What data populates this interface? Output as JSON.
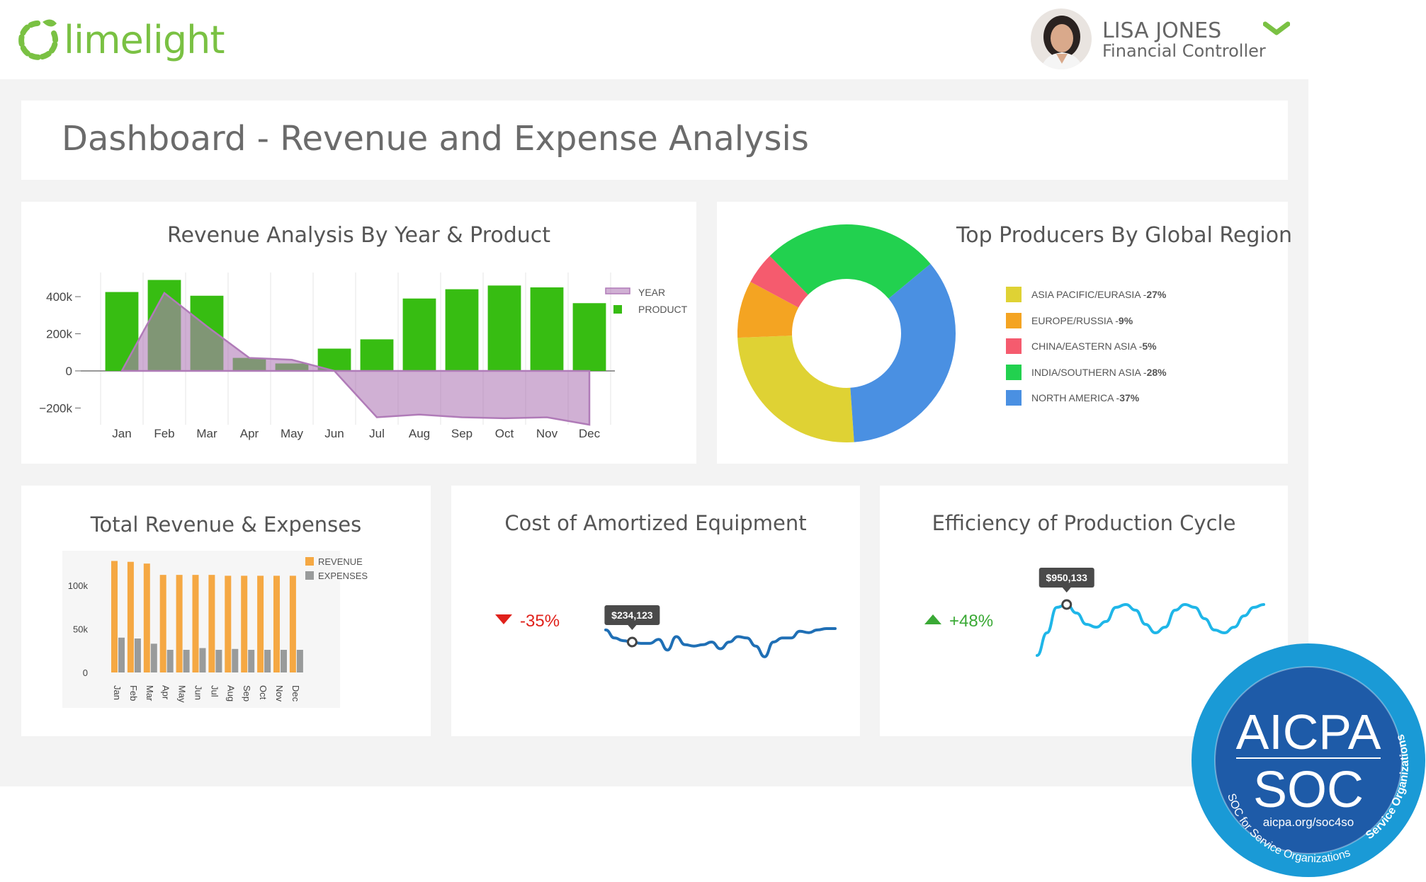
{
  "brand": {
    "name": "limelight",
    "color": "#7ac143"
  },
  "user": {
    "name": "LISA JONES",
    "role": "Financial Controller"
  },
  "page_title": "Dashboard - Revenue and Expense Analysis",
  "panels": {
    "revenue": {
      "title": "Revenue Analysis By Year & Product"
    },
    "producers": {
      "title": "Top Producers By Global Region"
    },
    "totals": {
      "title": "Total Revenue & Expenses"
    },
    "amortized": {
      "title": "Cost of Amortized Equipment",
      "change": "-35%",
      "tooltip": "$234,123",
      "trend": "down",
      "color": "#1f6fb5",
      "change_color": "#e0211b"
    },
    "efficiency": {
      "title": "Efficiency of Production Cycle",
      "change": "+48%",
      "tooltip": "$950,133",
      "trend": "up",
      "color": "#1fb6e8",
      "change_color": "#3aa935"
    }
  },
  "badge": {
    "top": "AICPA",
    "middle": "SOC",
    "url": "aicpa.org/soc4so",
    "ring_left": "SOC for Service Organizations",
    "ring_right": "Service Organizations",
    "color": "#1a9ad6"
  },
  "chart_data": [
    {
      "type": "bar",
      "title": "Revenue Analysis By Year & Product",
      "categories": [
        "Jan",
        "Feb",
        "Mar",
        "Apr",
        "May",
        "Jun",
        "Jul",
        "Aug",
        "Sep",
        "Oct",
        "Nov",
        "Dec"
      ],
      "y_ticks": [
        "400k",
        "200k",
        "0",
        "−200k"
      ],
      "ylim": [
        -290000,
        530000
      ],
      "legend_position": "right",
      "series": [
        {
          "name": "PRODUCT",
          "kind": "bar",
          "color": "#37bd12",
          "values": [
            425000,
            490000,
            405000,
            70000,
            40000,
            120000,
            170000,
            390000,
            440000,
            460000,
            450000,
            365000
          ]
        },
        {
          "name": "YEAR",
          "kind": "area",
          "color": "#b07bb8",
          "values": [
            0,
            420000,
            240000,
            70000,
            60000,
            0,
            -250000,
            -235000,
            -250000,
            -255000,
            -250000,
            -290000
          ]
        }
      ]
    },
    {
      "type": "pie",
      "title": "Top Producers By Global Region",
      "legend_position": "right",
      "slices": [
        {
          "label": "ASIA PACIFIC/EURASIA",
          "pct_label": "27%",
          "value": 27,
          "color": "#dfd234"
        },
        {
          "label": "EUROPE/RUSSIA",
          "pct_label": "9%",
          "value": 9,
          "color": "#f4a422"
        },
        {
          "label": "CHINA/EASTERN ASIA",
          "pct_label": "5%",
          "value": 5,
          "color": "#f55b6e"
        },
        {
          "label": "INDIA/SOUTHERN ASIA",
          "pct_label": "28%",
          "value": 28,
          "color": "#22d14f"
        },
        {
          "label": "NORTH AMERICA",
          "pct_label": "37%",
          "value": 37,
          "color": "#4a90e2"
        }
      ]
    },
    {
      "type": "bar",
      "title": "Total Revenue & Expenses",
      "categories": [
        "Jan",
        "Feb",
        "Mar",
        "Apr",
        "May",
        "Jun",
        "Jul",
        "Aug",
        "Sep",
        "Oct",
        "Nov",
        "Dec"
      ],
      "y_ticks": [
        "100k",
        "50k",
        "0"
      ],
      "ylim": [
        0,
        130000
      ],
      "legend_position": "top-right",
      "series": [
        {
          "name": "REVENUE",
          "color": "#f5a843",
          "values": [
            128000,
            127000,
            125000,
            112000,
            112000,
            112000,
            112000,
            111000,
            111000,
            111000,
            111000,
            111000
          ]
        },
        {
          "name": "EXPENSES",
          "color": "#999b9b",
          "values": [
            40000,
            39000,
            33000,
            26000,
            26000,
            28000,
            26000,
            27000,
            26000,
            26000,
            26000,
            26000
          ]
        }
      ]
    },
    {
      "type": "line",
      "title": "Cost of Amortized Equipment",
      "y": [
        0.95,
        0.65,
        0.55,
        0.5,
        0.45,
        0.45,
        0.6,
        0.2,
        0.7,
        0.4,
        0.35,
        0.4,
        0.5,
        0.25,
        0.5,
        0.7,
        0.65,
        0.35,
        -0.05,
        0.5,
        0.65,
        0.65,
        0.9,
        0.85,
        0.95,
        1.0,
        1.0
      ],
      "marker_index": 3,
      "marker_label": "$234,123"
    },
    {
      "type": "line",
      "title": "Efficiency of Production Cycle",
      "y": [
        0.05,
        0.45,
        0.9,
        0.95,
        0.8,
        0.6,
        0.55,
        0.65,
        0.9,
        0.95,
        0.85,
        0.6,
        0.45,
        0.55,
        0.85,
        0.95,
        0.9,
        0.7,
        0.5,
        0.45,
        0.55,
        0.75,
        0.9,
        0.95
      ],
      "marker_index": 3,
      "marker_label": "$950,133"
    }
  ]
}
